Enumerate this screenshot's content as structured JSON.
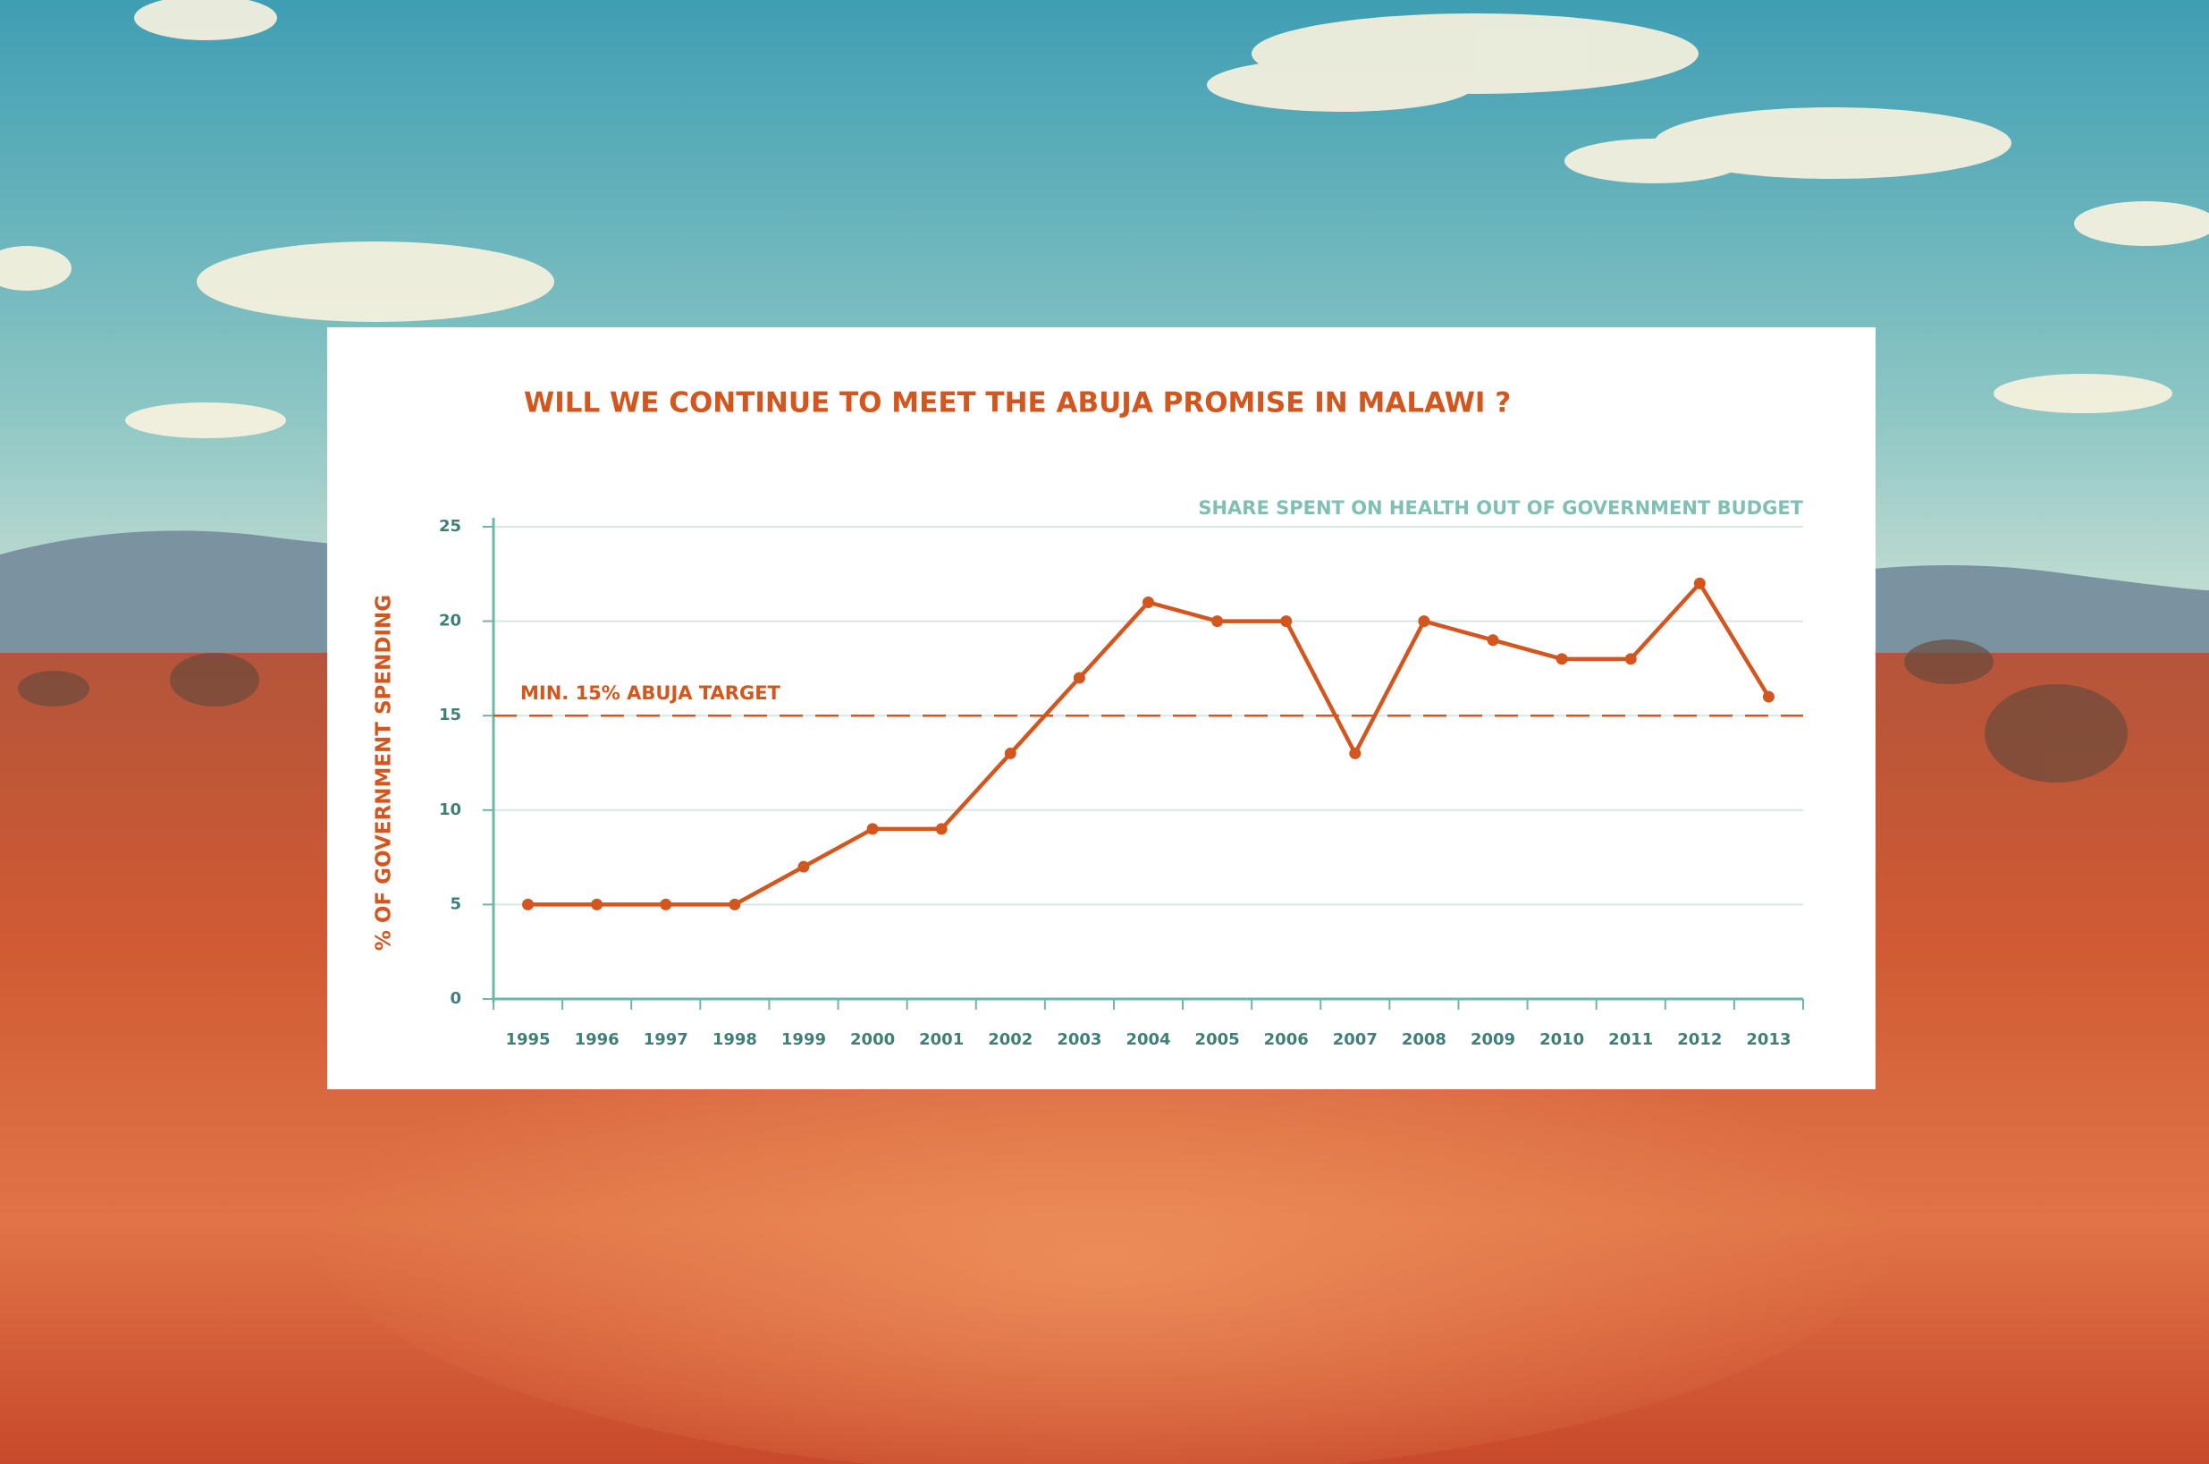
{
  "chart_data": {
    "type": "line",
    "title": "WILL WE CONTINUE TO MEET THE ABUJA PROMISE IN MALAWI ?",
    "y_label": "% OF GOVERNMENT SPENDING",
    "categories": [
      "1995",
      "1996",
      "1997",
      "1998",
      "1999",
      "2000",
      "2001",
      "2002",
      "2003",
      "2004",
      "2005",
      "2006",
      "2007",
      "2008",
      "2009",
      "2010",
      "2011",
      "2012",
      "2013"
    ],
    "series": [
      {
        "name": "SHARE SPENT ON HEALTH OUT OF GOVERNMENT BUDGET",
        "color": "#d2561e",
        "values": [
          5,
          5,
          5,
          5,
          7,
          9,
          9,
          13,
          17,
          21,
          20,
          20,
          13,
          20,
          19,
          18,
          18,
          22,
          16
        ]
      }
    ],
    "reference_line": {
      "value": 15,
      "label": "MIN. 15% ABUJA TARGET",
      "color": "#d2561e"
    },
    "ylim": [
      0,
      25
    ],
    "yticks": [
      0,
      5,
      10,
      15,
      20,
      25
    ],
    "grid": true,
    "axis_color": "#6fb5a8"
  }
}
